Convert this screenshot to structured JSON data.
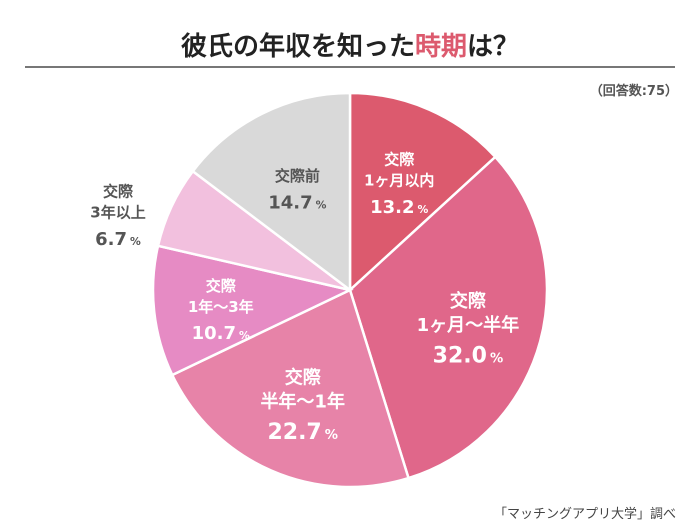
{
  "title": {
    "main": "彼氏の年収を知った",
    "highlight": "時期",
    "end": "は？"
  },
  "respondents": "（回答数:75）",
  "source": "「マッチングアプリ大学」調べ",
  "chart_data": {
    "type": "pie",
    "title": "彼氏の年収を知った時期は？",
    "unit": "%",
    "slices": [
      {
        "label": [
          "交際",
          "1ヶ月以内"
        ],
        "value": 13.2,
        "value_text": "13.2",
        "color": "#dc5a6e",
        "text_color": "#ffffff"
      },
      {
        "label": [
          "交際",
          "1ヶ月〜半年"
        ],
        "value": 32.0,
        "value_text": "32.0",
        "color": "#e0678a",
        "text_color": "#ffffff"
      },
      {
        "label": [
          "交際",
          "半年〜1年"
        ],
        "value": 22.7,
        "value_text": "22.7",
        "color": "#e783a8",
        "text_color": "#ffffff"
      },
      {
        "label": [
          "交際",
          "1年〜3年"
        ],
        "value": 10.7,
        "value_text": "10.7",
        "color": "#e68bc4",
        "text_color": "#ffffff"
      },
      {
        "label": [
          "交際",
          "3年以上"
        ],
        "value": 6.7,
        "value_text": "6.7",
        "color": "#f2c0de",
        "text_color": "#555555"
      },
      {
        "label": [
          "交際前"
        ],
        "value": 14.7,
        "value_text": "14.7",
        "color": "#d9d9d9",
        "text_color": "#555555"
      }
    ]
  }
}
